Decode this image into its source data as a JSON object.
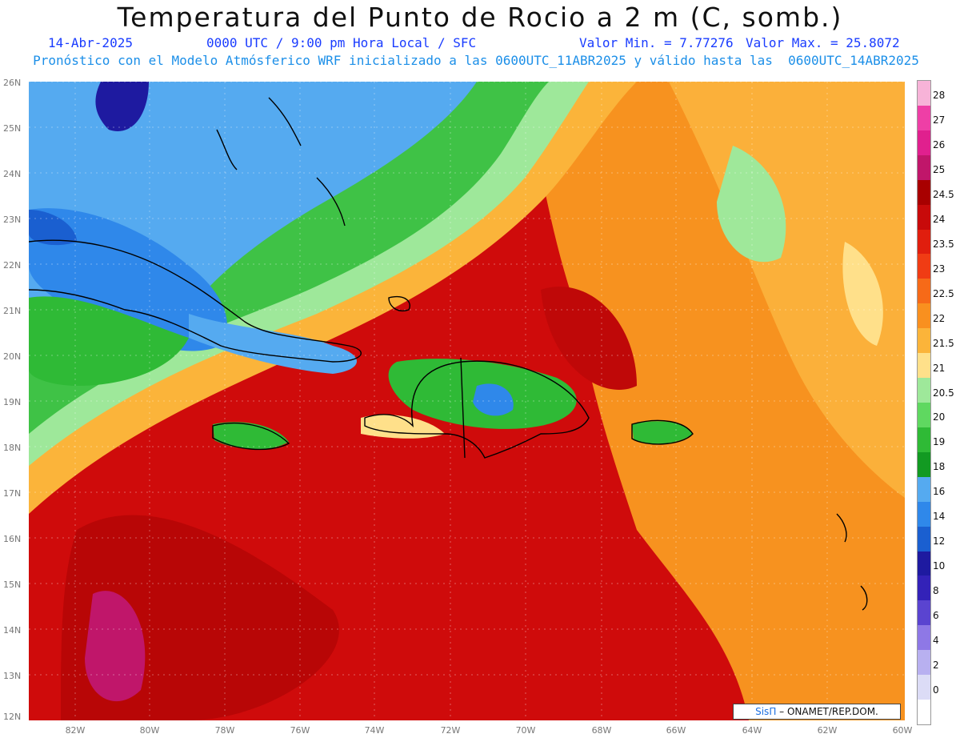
{
  "header": {
    "title": "Temperatura del Punto de Rocio a 2 m (C, somb.)",
    "date": "14-Abr-2025",
    "time_info": "0000 UTC / 9:00 pm Hora Local / SFC",
    "min_label": "Valor Min. = 7.77276",
    "max_label": "Valor Max. = 25.8072",
    "model_info": "Pronóstico con el Modelo Atmósferico WRF inicializado a las 0600UTC_11ABR2025 y válido hasta las  0600UTC_14ABR2025"
  },
  "axes": {
    "lat_labels": [
      "26N",
      "25N",
      "24N",
      "23N",
      "22N",
      "21N",
      "20N",
      "19N",
      "18N",
      "17N",
      "16N",
      "15N",
      "14N",
      "13N",
      "12N"
    ],
    "lon_labels": [
      "82W",
      "80W",
      "78W",
      "76W",
      "74W",
      "72W",
      "70W",
      "68W",
      "66W",
      "64W",
      "62W",
      "60W"
    ]
  },
  "colorbar": {
    "labels": [
      "28",
      "27",
      "26",
      "25",
      "24.5",
      "24",
      "23.5",
      "23",
      "22.5",
      "22",
      "21.5",
      "21",
      "20.5",
      "20",
      "19",
      "18",
      "16",
      "14",
      "12",
      "10",
      "8",
      "6",
      "4",
      "2",
      "0"
    ],
    "colors": [
      "#f7b3d8",
      "#ee3fa6",
      "#e0208e",
      "#c0166a",
      "#a80000",
      "#c80a0a",
      "#e01e0e",
      "#f03c14",
      "#f66a18",
      "#f9901f",
      "#fbb43a",
      "#ffe08a",
      "#9ee89a",
      "#5fd860",
      "#2fba36",
      "#129a22",
      "#55aaf0",
      "#2f88ea",
      "#1a5fd0",
      "#1e1aa0",
      "#3322b8",
      "#5a44d0",
      "#8e78e6",
      "#b8b0f0",
      "#dcdcf6",
      "#ffffff"
    ]
  },
  "credit": {
    "brand": "SisΠ",
    "text": " – ONAMET/REP.DOM."
  }
}
